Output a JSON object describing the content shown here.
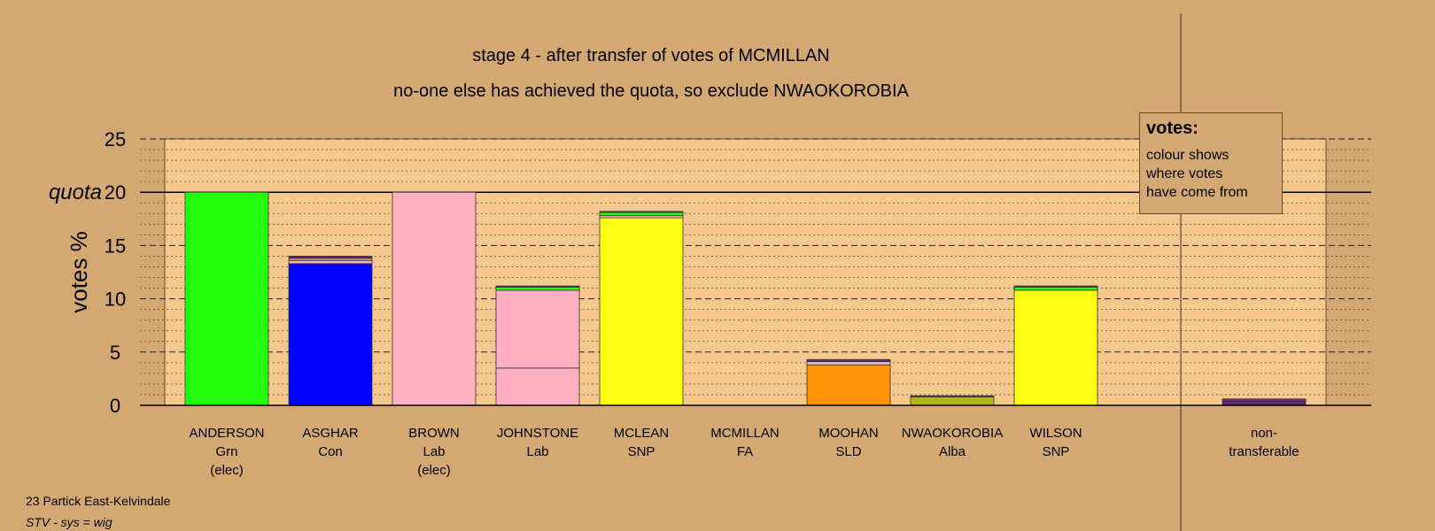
{
  "title": "stage 4 - after transfer of votes of MCMILLAN",
  "subtitle": "no-one else has achieved the quota, so exclude NWAOKOROBIA",
  "footer": {
    "ward": "23 Partick East-Kelvindale",
    "system": "STV - sys = wig"
  },
  "legend": {
    "title": "votes:",
    "body": "colour shows\nwhere votes\nhave come from"
  },
  "colors": {
    "background": "#d4a873",
    "plot_area": "#f5c98e",
    "Grn": "#22ff0d",
    "Con": "#0000ff",
    "Lab": "#ffb0c0",
    "SNP": "#ffff14",
    "SLD": "#ff9408",
    "Alba": "#b4b41c",
    "FA": "#7a2a7a",
    "other": "#5a2a6a"
  },
  "chart_data": {
    "type": "bar",
    "stacked": true,
    "ylabel": "votes %",
    "ylim": [
      0,
      25
    ],
    "yticks": [
      0,
      5,
      10,
      15,
      20,
      25
    ],
    "quota": 20,
    "quota_label": "quota",
    "grid": "dashed major, dotted minor",
    "candidates": [
      {
        "name": "ANDERSON",
        "party": "Grn",
        "note": "(elec)",
        "segments": [
          {
            "value": 20.0,
            "color": "#22ff0d"
          }
        ]
      },
      {
        "name": "ASGHAR",
        "party": "Con",
        "note": "",
        "segments": [
          {
            "value": 13.3,
            "color": "#0000ff"
          },
          {
            "value": 0.3,
            "color": "#ffb0c0"
          },
          {
            "value": 0.2,
            "color": "#d4a873"
          },
          {
            "value": 0.2,
            "color": "#5a2a6a"
          }
        ]
      },
      {
        "name": "BROWN",
        "party": "Lab",
        "note": "(elec)",
        "segments": [
          {
            "value": 20.0,
            "color": "#ffb0c0"
          }
        ]
      },
      {
        "name": "JOHNSTONE",
        "party": "Lab",
        "note": "",
        "segments": [
          {
            "value": 3.5,
            "color": "#ffb0c0"
          },
          {
            "value": 7.3,
            "color": "#ffb0c0"
          },
          {
            "value": 0.3,
            "color": "#22ff0d"
          },
          {
            "value": 0.1,
            "color": "#5a2a6a"
          }
        ]
      },
      {
        "name": "MCLEAN",
        "party": "SNP",
        "note": "",
        "segments": [
          {
            "value": 17.6,
            "color": "#ffff14"
          },
          {
            "value": 0.2,
            "color": "#ffb0c0"
          },
          {
            "value": 0.3,
            "color": "#22ff0d"
          },
          {
            "value": 0.1,
            "color": "#5a2a6a"
          }
        ]
      },
      {
        "name": "MCMILLAN",
        "party": "FA",
        "note": "",
        "segments": [
          {
            "value": 0.0,
            "color": "#7a2a7a"
          }
        ]
      },
      {
        "name": "MOOHAN",
        "party": "SLD",
        "note": "",
        "segments": [
          {
            "value": 3.8,
            "color": "#ff9408"
          },
          {
            "value": 0.3,
            "color": "#ffb0c0"
          },
          {
            "value": 0.2,
            "color": "#5a2a6a"
          }
        ]
      },
      {
        "name": "NWAOKOROBIA",
        "party": "Alba",
        "note": "",
        "segments": [
          {
            "value": 0.8,
            "color": "#b4b41c"
          },
          {
            "value": 0.1,
            "color": "#5a2a6a"
          }
        ]
      },
      {
        "name": "WILSON",
        "party": "SNP",
        "note": "",
        "segments": [
          {
            "value": 10.8,
            "color": "#ffff14"
          },
          {
            "value": 0.3,
            "color": "#22ff0d"
          },
          {
            "value": 0.1,
            "color": "#5a2a6a"
          }
        ]
      }
    ],
    "nontransferable": {
      "label": "non-\ntransferable",
      "segments": [
        {
          "value": 0.4,
          "color": "#5a2a6a"
        },
        {
          "value": 0.2,
          "color": "#7a2a7a"
        }
      ]
    }
  }
}
